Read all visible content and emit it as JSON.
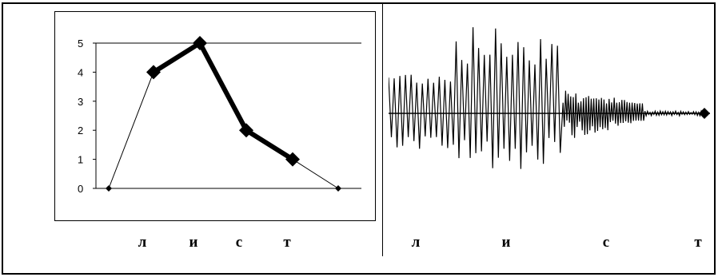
{
  "chart_data": [
    {
      "type": "line",
      "categories": [
        "",
        "л",
        "и",
        "с",
        "т",
        ""
      ],
      "values": [
        0,
        4,
        5,
        2,
        1,
        0
      ],
      "ylim": [
        0,
        5
      ],
      "yticks": [
        "0",
        "1",
        "2",
        "3",
        "4",
        "5"
      ],
      "xlabel": "",
      "ylabel": "",
      "title": "",
      "grid": false
    },
    {
      "type": "line",
      "categories": [
        "л",
        "и",
        "с",
        "т"
      ],
      "title": "",
      "xlabel": "",
      "ylabel": "",
      "grid": false
    }
  ],
  "left_letters": [
    "л",
    "и",
    "с",
    "т"
  ],
  "right_letters": [
    "л",
    "и",
    "с",
    "т"
  ]
}
